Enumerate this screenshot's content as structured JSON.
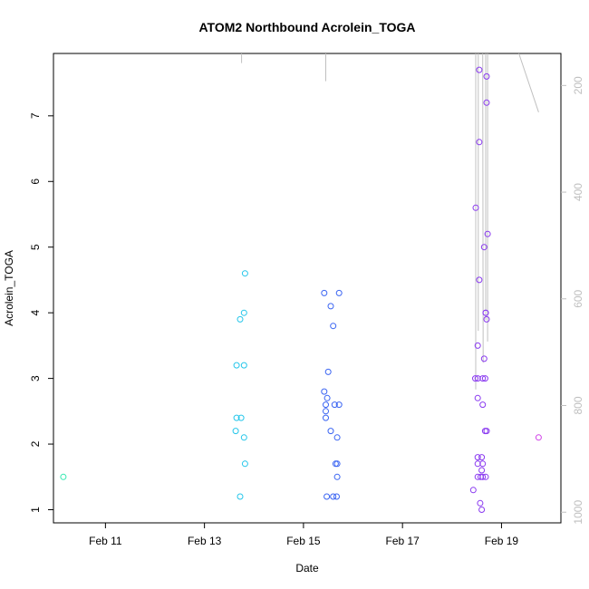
{
  "chart_data": {
    "type": "scatter",
    "title": "ATOM2 Northbound Acrolein_TOGA",
    "xlabel": "Date",
    "ylabel": "Acrolein_TOGA",
    "xlim": [
      9.95,
      20.2
    ],
    "ylim": [
      0.8,
      7.95
    ],
    "x_ticks": [
      {
        "value": 11,
        "label": "Feb 11"
      },
      {
        "value": 13,
        "label": "Feb 13"
      },
      {
        "value": 15,
        "label": "Feb 15"
      },
      {
        "value": 17,
        "label": "Feb 17"
      },
      {
        "value": 19,
        "label": "Feb 19"
      }
    ],
    "y_ticks": [
      1,
      2,
      3,
      4,
      5,
      6,
      7
    ],
    "y2_ticks": [
      200,
      400,
      600,
      800,
      1000
    ],
    "y2_lim": [
      1020,
      140
    ],
    "grid": false,
    "legend": "none",
    "colors": {
      "group1": "#33e8b0",
      "group2": "#25c6ea",
      "group3": "#3a64f2",
      "group4": "#8a3af0",
      "group5": "#d040e8",
      "trace": "#c0c0c0"
    },
    "series": [
      {
        "color_key": "group1",
        "x": [
          10.15
        ],
        "y": [
          1.5
        ]
      },
      {
        "color_key": "group2",
        "x": [
          13.82,
          13.72,
          13.8,
          13.65,
          13.8,
          13.65,
          13.74,
          13.63,
          13.8,
          13.82,
          13.72
        ],
        "y": [
          4.6,
          3.9,
          4.0,
          3.2,
          3.2,
          2.4,
          2.4,
          2.2,
          2.1,
          1.7,
          1.2
        ]
      },
      {
        "color_key": "group3",
        "x": [
          15.42,
          15.72,
          15.55,
          15.6,
          15.5,
          15.42,
          15.48,
          15.45,
          15.63,
          15.72,
          15.45,
          15.45,
          15.55,
          15.68,
          15.65,
          15.68,
          15.68,
          15.47,
          15.6,
          15.67
        ],
        "y": [
          4.3,
          4.3,
          4.1,
          3.8,
          3.1,
          2.8,
          2.7,
          2.6,
          2.6,
          2.6,
          2.5,
          2.4,
          2.2,
          2.1,
          1.7,
          1.7,
          1.5,
          1.2,
          1.2,
          1.2
        ],
        "x_extra": [],
        "y_extra": []
      },
      {
        "color_key": "group4",
        "x": [
          18.55,
          18.7,
          18.7,
          18.55,
          18.48,
          18.72,
          18.65,
          18.55,
          18.68,
          18.68,
          18.7,
          18.52,
          18.65,
          18.47,
          18.52,
          18.62,
          18.67,
          18.52,
          18.62,
          18.67,
          18.7,
          18.52,
          18.6,
          18.52,
          18.62,
          18.6,
          18.52,
          18.58,
          18.62,
          18.68,
          18.43,
          18.57,
          18.6
        ],
        "y": [
          7.7,
          7.6,
          7.2,
          6.6,
          5.6,
          5.2,
          5.0,
          4.5,
          4.0,
          4.0,
          3.9,
          3.5,
          3.3,
          3.0,
          3.0,
          3.0,
          3.0,
          2.7,
          2.6,
          2.2,
          2.2,
          1.8,
          1.8,
          1.7,
          1.7,
          1.6,
          1.5,
          1.5,
          1.5,
          1.5,
          1.3,
          1.1,
          1.0
        ]
      },
      {
        "color_key": "group5",
        "x": [
          19.75
        ],
        "y": [
          2.1
        ]
      }
    ],
    "traces": [
      {
        "x": [
          13.75,
          13.75
        ],
        "y2": [
          140,
          158
        ]
      },
      {
        "x": [
          15.45,
          15.45
        ],
        "y2": [
          140,
          192
        ]
      },
      {
        "x": [
          18.48,
          18.48,
          18.48
        ],
        "y2": [
          140,
          600,
          770
        ]
      },
      {
        "x": [
          18.53,
          18.53
        ],
        "y2": [
          140,
          660
        ]
      },
      {
        "x": [
          18.62,
          18.63
        ],
        "y2": [
          140,
          720
        ]
      },
      {
        "x": [
          18.68,
          18.68
        ],
        "y2": [
          140,
          640
        ]
      },
      {
        "x": [
          18.72,
          18.72
        ],
        "y2": [
          140,
          680
        ]
      },
      {
        "x": [
          19.35,
          19.75
        ],
        "y2": [
          140,
          250
        ]
      }
    ]
  }
}
